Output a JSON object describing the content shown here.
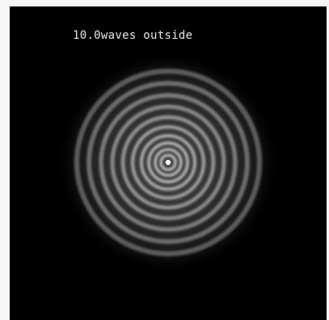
{
  "caption": "10.0waves outside",
  "pattern": {
    "rings": 10,
    "glow_color": "#ffffff",
    "background": "#000000"
  }
}
